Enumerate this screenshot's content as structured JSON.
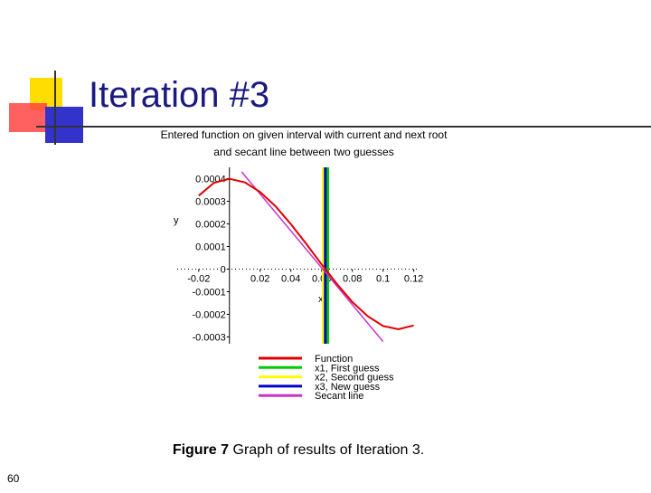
{
  "slide": {
    "title": "Iteration #3",
    "caption_label": "Figure 7",
    "caption_text": "Graph of results of Iteration 3.",
    "page_number": "60"
  },
  "chart_data": {
    "type": "line",
    "title": [
      "Entered function on given interval with current and next root",
      "and secant line between two guesses"
    ],
    "x_label": "x",
    "y_label": "y",
    "xlim": [
      -0.034,
      0.122
    ],
    "ylim": [
      -0.00033,
      0.00045
    ],
    "xticks": [
      -0.02,
      0.02,
      0.04,
      0.06,
      0.08,
      0.1,
      0.12
    ],
    "yticks": [
      0.0004,
      0.0003,
      0.0002,
      0.0001,
      0,
      -0.0001,
      -0.0002,
      -0.0003
    ],
    "series": [
      {
        "name": "Function",
        "color": "#e00000",
        "x": [
          -0.02,
          -0.01,
          0,
          0.01,
          0.02,
          0.03,
          0.04,
          0.05,
          0.06,
          0.07,
          0.08,
          0.09,
          0.1,
          0.11,
          0.12
        ],
        "values": [
          0.000325,
          0.000382,
          0.000399,
          0.000384,
          0.000341,
          0.000278,
          0.000199,
          0.000112,
          2.1e-05,
          -6.6e-05,
          -0.000145,
          -0.000208,
          -0.000251,
          -0.000266,
          -0.000249
        ]
      },
      {
        "name": "x1, First guess",
        "color": "#00cc00",
        "x": [
          0.064,
          0.064
        ],
        "values": [
          0.00045,
          -0.00033
        ]
      },
      {
        "name": "x2, Second guess",
        "color": "#ffff00",
        "x": [
          0.061,
          0.061
        ],
        "values": [
          0.00045,
          -0.00033
        ]
      },
      {
        "name": "x3, New guess",
        "color": "#0000cc",
        "x": [
          0.0624,
          0.0624
        ],
        "values": [
          0.00045,
          -0.00033
        ]
      },
      {
        "name": "Secant line",
        "color": "#cc33cc",
        "x": [
          0.008,
          0.1
        ],
        "values": [
          0.00043,
          -0.00032
        ]
      }
    ]
  }
}
